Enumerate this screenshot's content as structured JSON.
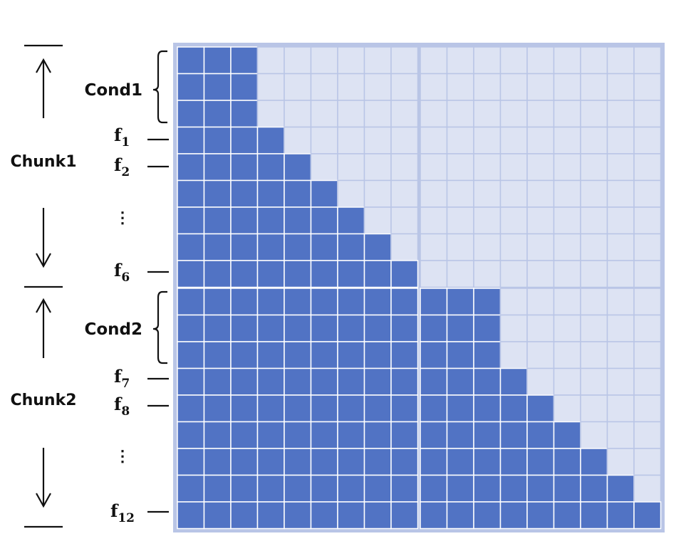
{
  "chunks": [
    {
      "label": "Chunk1",
      "cond_label": "Cond1",
      "first_frame": {
        "base": "f",
        "sub": "1"
      },
      "second_frame": {
        "base": "f",
        "sub": "2"
      },
      "ellipsis": "⋮",
      "last_frame": {
        "base": "f",
        "sub": "6"
      }
    },
    {
      "label": "Chunk2",
      "cond_label": "Cond2",
      "first_frame": {
        "base": "f",
        "sub": "7"
      },
      "second_frame": {
        "base": "f",
        "sub": "8"
      },
      "ellipsis": "⋮",
      "last_frame": {
        "base": "f",
        "sub": "12"
      }
    }
  ],
  "matrix": {
    "rows_per_block": 9,
    "cols_per_block": 9,
    "cond_tokens_per_chunk": 3,
    "frames_per_chunk": 6,
    "mask_rule": "causal frame mask within chunk; full attention to all tokens of earlier chunks",
    "colors": {
      "attend": "#5173c4",
      "masked": "#dde3f3",
      "cell_grid": "#ffffff",
      "cell_grid_masked": "#b9c5e6",
      "block_border": "#b9c5e6"
    }
  }
}
